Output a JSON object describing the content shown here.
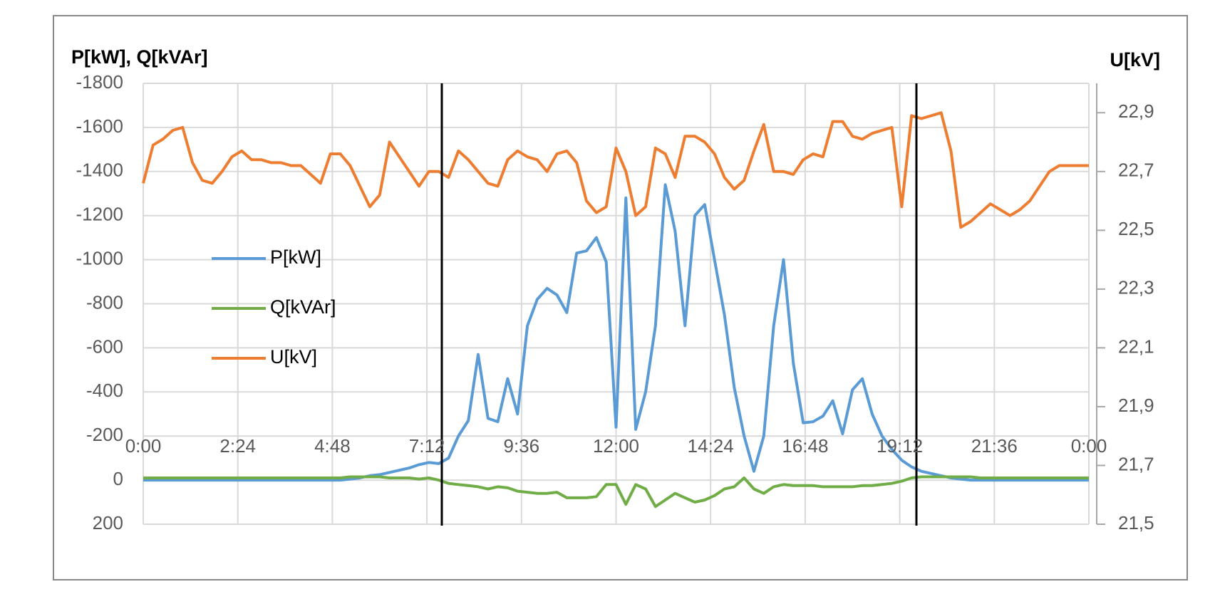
{
  "chart_data": {
    "type": "line",
    "y_label": "P[kW], Q[kVAr]",
    "y2_label": "U[kV]",
    "x": [
      0,
      0.25,
      0.5,
      0.75,
      1,
      1.25,
      1.5,
      1.75,
      2,
      2.25,
      2.5,
      2.75,
      3,
      3.25,
      3.5,
      3.75,
      4,
      4.25,
      4.5,
      4.75,
      5,
      5.25,
      5.5,
      5.75,
      6,
      6.25,
      6.5,
      6.75,
      7,
      7.25,
      7.5,
      7.75,
      8,
      8.25,
      8.5,
      8.75,
      9,
      9.25,
      9.5,
      9.75,
      10,
      10.25,
      10.5,
      10.75,
      11,
      11.25,
      11.5,
      11.75,
      12,
      12.25,
      12.5,
      12.75,
      13,
      13.25,
      13.5,
      13.75,
      14,
      14.25,
      14.5,
      14.75,
      15,
      15.25,
      15.5,
      15.75,
      16,
      16.25,
      16.5,
      16.75,
      17,
      17.25,
      17.5,
      17.75,
      18,
      18.25,
      18.5,
      18.75,
      19,
      19.25,
      19.5,
      19.75,
      20,
      20.25,
      20.5,
      20.75,
      21,
      21.25,
      21.5,
      21.75,
      22,
      22.25,
      22.5,
      22.75,
      23,
      23.25,
      23.5,
      23.75,
      24
    ],
    "xlim": [
      0,
      24
    ],
    "xticks": [
      {
        "value": 0,
        "label": "0:00"
      },
      {
        "value": 2.4,
        "label": "2:24"
      },
      {
        "value": 4.8,
        "label": "4:48"
      },
      {
        "value": 7.2,
        "label": "7:12"
      },
      {
        "value": 9.6,
        "label": "9:36"
      },
      {
        "value": 12,
        "label": "12:00"
      },
      {
        "value": 14.4,
        "label": "14:24"
      },
      {
        "value": 16.8,
        "label": "16:48"
      },
      {
        "value": 19.2,
        "label": "19:12"
      },
      {
        "value": 21.6,
        "label": "21:36"
      },
      {
        "value": 24,
        "label": "0:00"
      }
    ],
    "ylim": [
      200,
      -1800
    ],
    "yticks": [
      -1800,
      -1600,
      -1400,
      -1200,
      -1000,
      -800,
      -600,
      -400,
      -200,
      0,
      200
    ],
    "y2lim": [
      21.5,
      23.0
    ],
    "y2ticks": [
      {
        "value": 21.5,
        "label": "21,5"
      },
      {
        "value": 21.7,
        "label": "21,7"
      },
      {
        "value": 21.9,
        "label": "21,9"
      },
      {
        "value": 22.1,
        "label": "22,1"
      },
      {
        "value": 22.3,
        "label": "22,3"
      },
      {
        "value": 22.5,
        "label": "22,5"
      },
      {
        "value": 22.7,
        "label": "22,7"
      },
      {
        "value": 22.9,
        "label": "22,9"
      }
    ],
    "grid": true,
    "legend": "center-left",
    "series": [
      {
        "name": "P[kW]",
        "color": "#5b9bd5",
        "values": [
          0,
          0,
          0,
          0,
          0,
          0,
          0,
          0,
          0,
          0,
          0,
          0,
          0,
          0,
          0,
          0,
          0,
          0,
          0,
          0,
          0,
          -5,
          -10,
          -20,
          -25,
          -35,
          -45,
          -55,
          -70,
          -80,
          -75,
          -100,
          -200,
          -270,
          -570,
          -280,
          -265,
          -460,
          -300,
          -700,
          -820,
          -870,
          -840,
          -760,
          -1030,
          -1040,
          -1100,
          -990,
          -240,
          -1280,
          -230,
          -400,
          -700,
          -1340,
          -1130,
          -700,
          -1200,
          -1250,
          -1000,
          -750,
          -420,
          -200,
          -40,
          -200,
          -700,
          -1000,
          -530,
          -260,
          -265,
          -290,
          -360,
          -210,
          -410,
          -460,
          -300,
          -200,
          -140,
          -90,
          -60,
          -40,
          -30,
          -20,
          -10,
          -5,
          0,
          0,
          0,
          0,
          0,
          0,
          0,
          0,
          0,
          0,
          0,
          0,
          0
        ]
      },
      {
        "name": "Q[kVAr]",
        "color": "#70ad47",
        "values": [
          -10,
          -10,
          -10,
          -10,
          -10,
          -10,
          -10,
          -10,
          -10,
          -10,
          -10,
          -10,
          -10,
          -10,
          -10,
          -10,
          -10,
          -10,
          -10,
          -10,
          -10,
          -15,
          -15,
          -15,
          -15,
          -10,
          -10,
          -10,
          -5,
          -10,
          0,
          15,
          20,
          25,
          30,
          40,
          30,
          35,
          50,
          55,
          60,
          60,
          55,
          80,
          80,
          80,
          75,
          20,
          20,
          110,
          20,
          40,
          120,
          90,
          60,
          80,
          100,
          90,
          70,
          40,
          30,
          -10,
          40,
          60,
          30,
          20,
          25,
          25,
          25,
          30,
          30,
          30,
          30,
          25,
          25,
          20,
          15,
          5,
          -10,
          -15,
          -15,
          -15,
          -15,
          -15,
          -15,
          -10,
          -10,
          -10,
          -10,
          -10,
          -10,
          -10,
          -10,
          -10,
          -10,
          -10,
          -10
        ]
      },
      {
        "name": "U[kV]",
        "color": "#ed7d31",
        "axis": "y2",
        "values": [
          22.66,
          22.79,
          22.81,
          22.84,
          22.85,
          22.73,
          22.67,
          22.66,
          22.7,
          22.75,
          22.77,
          22.74,
          22.74,
          22.73,
          22.73,
          22.72,
          22.72,
          22.69,
          22.66,
          22.76,
          22.76,
          22.72,
          22.65,
          22.58,
          22.62,
          22.8,
          22.75,
          22.7,
          22.65,
          22.7,
          22.7,
          22.68,
          22.77,
          22.74,
          22.7,
          22.66,
          22.65,
          22.74,
          22.77,
          22.75,
          22.74,
          22.7,
          22.76,
          22.77,
          22.73,
          22.6,
          22.56,
          22.58,
          22.78,
          22.7,
          22.55,
          22.58,
          22.78,
          22.76,
          22.68,
          22.82,
          22.82,
          22.8,
          22.76,
          22.68,
          22.64,
          22.67,
          22.77,
          22.86,
          22.7,
          22.7,
          22.69,
          22.74,
          22.76,
          22.75,
          22.87,
          22.87,
          22.82,
          22.81,
          22.83,
          22.84,
          22.85,
          22.58,
          22.89,
          22.88,
          22.89,
          22.9,
          22.77,
          22.51,
          22.53,
          22.56,
          22.59,
          22.57,
          22.55,
          22.57,
          22.6,
          22.65,
          22.7,
          22.72,
          22.72,
          22.72,
          22.72
        ]
      }
    ]
  }
}
